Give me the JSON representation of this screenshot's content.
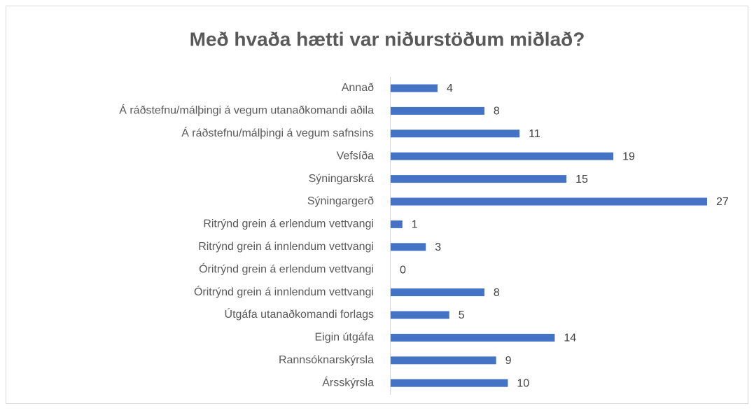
{
  "chart_data": {
    "type": "bar",
    "orientation": "horizontal",
    "title": "Með hvaða hætti var niðurstöðum miðlað?",
    "categories": [
      "Annað",
      "Á ráðstefnu/málþingi á vegum utanaðkomandi aðila",
      "Á ráðstefnu/málþingi á vegum safnsins",
      "Vefsíða",
      "Sýningarskrá",
      "Sýningargerð",
      "Ritrýnd grein á erlendum vettvangi",
      "Ritrýnd grein á innlendum vettvangi",
      "Óritrýnd grein á erlendum vettvangi",
      "Óritrýnd grein á innlendum vettvangi",
      "Útgáfa utanaðkomandi forlags",
      "Eigin útgáfa",
      "Rannsóknarskýrsla",
      "Ársskýrsla"
    ],
    "values": [
      4,
      8,
      11,
      19,
      15,
      27,
      1,
      3,
      0,
      8,
      5,
      14,
      9,
      10
    ],
    "color": "#4472c4"
  }
}
